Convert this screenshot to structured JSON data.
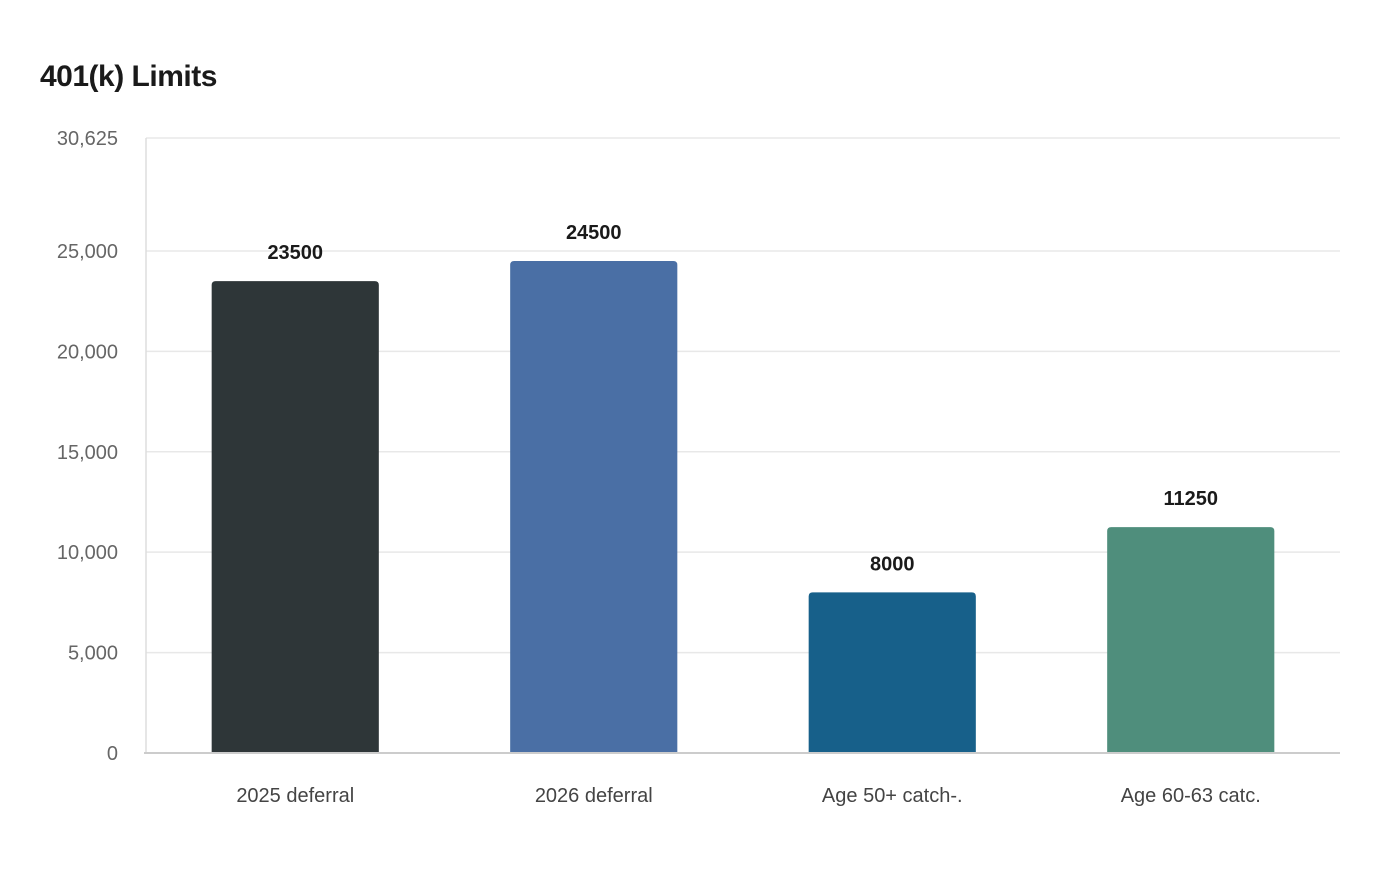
{
  "chart_data": {
    "type": "bar",
    "title": "401(k) Limits",
    "categories": [
      "2025 deferral",
      "2026 deferral",
      "Age 50+ catch-.",
      "Age 60-63 catc."
    ],
    "values": [
      23500,
      24500,
      8000,
      11250
    ],
    "data_labels": [
      "23500",
      "24500",
      "8000",
      "11250"
    ],
    "colors": [
      "#2e3638",
      "#4a6fa5",
      "#17608a",
      "#4f8e7c"
    ],
    "ylim": [
      0,
      30625
    ],
    "yticks": [
      0,
      5000,
      10000,
      15000,
      20000,
      25000,
      30625
    ],
    "ytick_labels": [
      "0",
      "5,000",
      "10,000",
      "15,000",
      "20,000",
      "25,000",
      "30,625"
    ],
    "xlabel": "",
    "ylabel": "",
    "grid": true,
    "legend": "none"
  }
}
